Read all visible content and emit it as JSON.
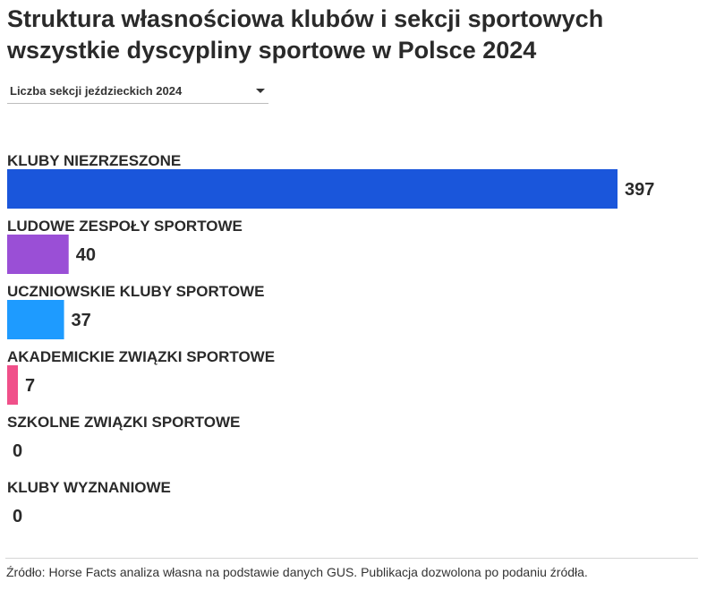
{
  "header": {
    "title_line1": "Struktura własnościowa klubów i sekcji sportowych",
    "title_line2": "wszystkie dyscypliny sportowe w Polsce 2024"
  },
  "selector": {
    "selected": "Liczba sekcji jeździeckich 2024"
  },
  "footer": {
    "source": "Źródło: Horse Facts analiza własna na podstawie danych GUS. Publikacja dozwolona po podaniu źródła."
  },
  "colors": {
    "bars": [
      "#1a56db",
      "#9a4fd6",
      "#1e9bff",
      "#f0508a",
      "#cccccc",
      "#cccccc"
    ]
  },
  "chart_data": {
    "type": "bar",
    "orientation": "horizontal",
    "categories": [
      "KLUBY NIEZRZESZONE",
      "LUDOWE ZESPOŁY SPORTOWE",
      "UCZNIOWSKIE KLUBY SPORTOWE",
      "AKADEMICKIE ZWIĄZKI SPORTOWE",
      "SZKOLNE ZWIĄZKI SPORTOWE",
      "KLUBY WYZNANIOWE"
    ],
    "values": [
      397,
      40,
      37,
      7,
      0,
      0
    ],
    "data_labels": true,
    "grid": false,
    "legend": "none"
  }
}
